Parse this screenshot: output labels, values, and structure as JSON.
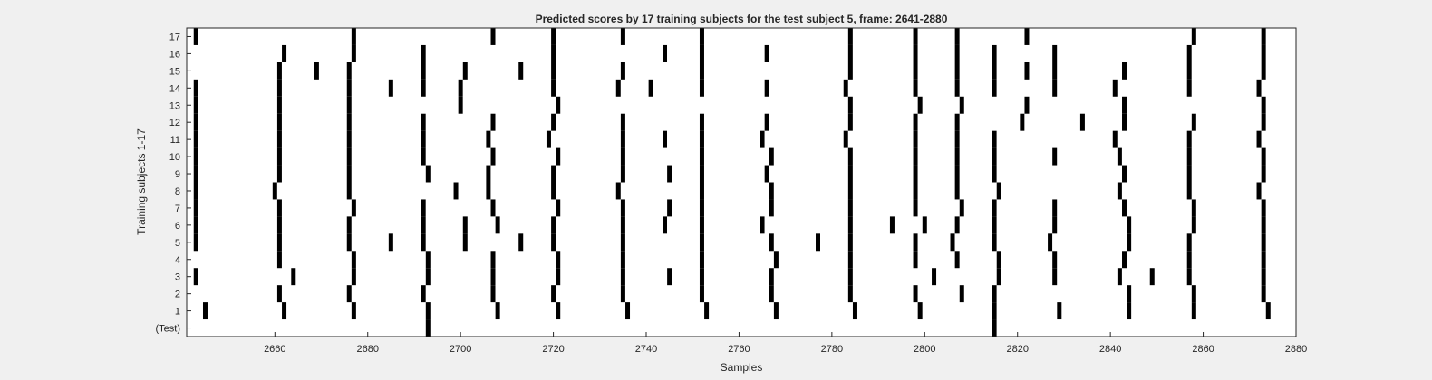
{
  "chart_data": {
    "type": "heatmap",
    "title": "Predicted scores by 17 training subjects for the test subject 5, frame: 2641-2880",
    "xlabel": "Samples",
    "ylabel": "Training subjects 1-17",
    "xlim": [
      2641,
      2880
    ],
    "xticks": [
      2660,
      2680,
      2700,
      2720,
      2740,
      2760,
      2780,
      2800,
      2820,
      2840,
      2860,
      2880
    ],
    "row_labels": [
      "(Test)",
      "1",
      "2",
      "3",
      "4",
      "5",
      "6",
      "7",
      "8",
      "9",
      "10",
      "11",
      "12",
      "13",
      "14",
      "15",
      "16",
      "17"
    ],
    "grid": false,
    "colors": {
      "background": "#ffffff",
      "mark": "#000000",
      "figure": "#f0f0f0",
      "axis": "#262626"
    },
    "rows": [
      {
        "label": "(Test)",
        "x": [
          2693,
          2815
        ]
      },
      {
        "label": "1",
        "x": [
          2645,
          2662,
          2677,
          2693,
          2708,
          2721,
          2736,
          2753,
          2768,
          2785,
          2799,
          2815,
          2829,
          2844,
          2858,
          2874
        ]
      },
      {
        "label": "2",
        "x": [
          2661,
          2676,
          2692,
          2707,
          2720,
          2735,
          2752,
          2767,
          2784,
          2798,
          2808,
          2815,
          2844,
          2858,
          2873
        ]
      },
      {
        "label": "3",
        "x": [
          2643,
          2664,
          2677,
          2693,
          2707,
          2721,
          2735,
          2745,
          2752,
          2767,
          2784,
          2802,
          2816,
          2828,
          2842,
          2849,
          2857,
          2873
        ]
      },
      {
        "label": "4",
        "x": [
          2661,
          2677,
          2693,
          2707,
          2721,
          2735,
          2752,
          2768,
          2784,
          2798,
          2807,
          2816,
          2828,
          2843,
          2857,
          2873
        ]
      },
      {
        "label": "5",
        "x": [
          2643,
          2661,
          2676,
          2685,
          2692,
          2701,
          2713,
          2720,
          2735,
          2752,
          2767,
          2777,
          2784,
          2798,
          2806,
          2815,
          2827,
          2844,
          2857,
          2873
        ]
      },
      {
        "label": "6",
        "x": [
          2643,
          2661,
          2676,
          2692,
          2701,
          2708,
          2720,
          2735,
          2744,
          2752,
          2765,
          2784,
          2793,
          2800,
          2807,
          2815,
          2828,
          2844,
          2858,
          2873
        ]
      },
      {
        "label": "7",
        "x": [
          2643,
          2661,
          2677,
          2692,
          2707,
          2721,
          2735,
          2745,
          2752,
          2767,
          2784,
          2798,
          2808,
          2815,
          2828,
          2843,
          2858,
          2873
        ]
      },
      {
        "label": "8",
        "x": [
          2643,
          2660,
          2676,
          2699,
          2706,
          2720,
          2734,
          2752,
          2767,
          2784,
          2798,
          2807,
          2816,
          2842,
          2857,
          2872
        ]
      },
      {
        "label": "9",
        "x": [
          2643,
          2661,
          2676,
          2693,
          2706,
          2720,
          2735,
          2745,
          2752,
          2766,
          2784,
          2798,
          2807,
          2815,
          2843,
          2857,
          2873
        ]
      },
      {
        "label": "10",
        "x": [
          2643,
          2661,
          2676,
          2692,
          2707,
          2721,
          2735,
          2752,
          2767,
          2784,
          2798,
          2807,
          2815,
          2828,
          2842,
          2857,
          2873
        ]
      },
      {
        "label": "11",
        "x": [
          2643,
          2661,
          2676,
          2692,
          2706,
          2719,
          2735,
          2744,
          2752,
          2765,
          2783,
          2798,
          2807,
          2815,
          2841,
          2857,
          2872
        ]
      },
      {
        "label": "12",
        "x": [
          2643,
          2661,
          2676,
          2692,
          2707,
          2720,
          2735,
          2752,
          2766,
          2784,
          2798,
          2807,
          2821,
          2834,
          2843,
          2858,
          2873
        ]
      },
      {
        "label": "13",
        "x": [
          2643,
          2661,
          2676,
          2700,
          2721,
          2784,
          2799,
          2808,
          2822,
          2843,
          2873
        ]
      },
      {
        "label": "14",
        "x": [
          2643,
          2661,
          2676,
          2685,
          2692,
          2700,
          2720,
          2734,
          2741,
          2752,
          2766,
          2783,
          2798,
          2807,
          2815,
          2828,
          2841,
          2857,
          2872
        ]
      },
      {
        "label": "15",
        "x": [
          2661,
          2669,
          2676,
          2692,
          2701,
          2713,
          2720,
          2735,
          2752,
          2784,
          2798,
          2807,
          2815,
          2822,
          2828,
          2843,
          2857,
          2873
        ]
      },
      {
        "label": "16",
        "x": [
          2662,
          2677,
          2692,
          2720,
          2744,
          2752,
          2766,
          2784,
          2798,
          2807,
          2815,
          2828,
          2857,
          2873
        ]
      },
      {
        "label": "17",
        "x": [
          2643,
          2677,
          2707,
          2720,
          2735,
          2752,
          2784,
          2798,
          2807,
          2822,
          2858,
          2873
        ]
      }
    ]
  }
}
